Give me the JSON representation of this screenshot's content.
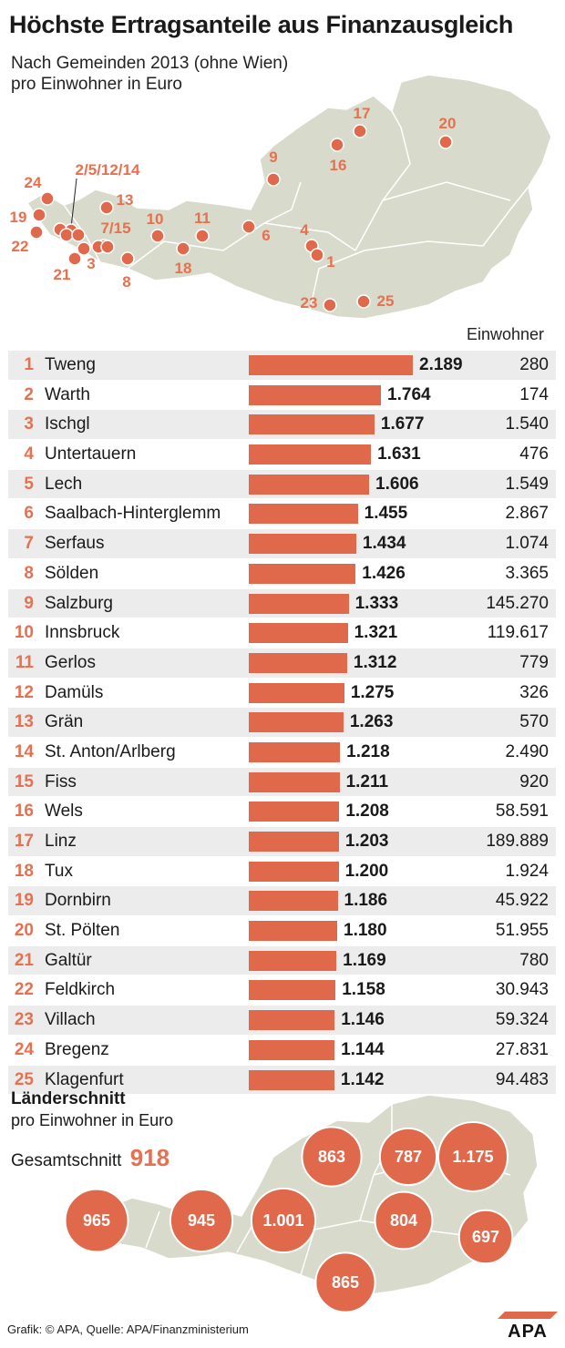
{
  "header": {
    "title": "Höchste Ertragsanteile aus Finanzausgleich",
    "subtitle_line1": "Nach Gemeinden 2013 (ohne Wien)",
    "subtitle_line2": "pro Einwohner in Euro"
  },
  "table_header": {
    "einwohner": "Einwohner"
  },
  "colors": {
    "accent": "#e0694c",
    "map_fill": "#d8dacb",
    "row_alt": "#ececec"
  },
  "chart_data": [
    {
      "type": "bar",
      "orientation": "horizontal",
      "title": "Höchste Ertragsanteile aus Finanzausgleich",
      "subtitle": "Nach Gemeinden 2013 (ohne Wien) pro Einwohner in Euro",
      "rows": [
        {
          "rank": "1",
          "name": "Tweng",
          "value": 2189,
          "value_label": "2.189",
          "einwohner": "280"
        },
        {
          "rank": "2",
          "name": "Warth",
          "value": 1764,
          "value_label": "1.764",
          "einwohner": "174"
        },
        {
          "rank": "3",
          "name": "Ischgl",
          "value": 1677,
          "value_label": "1.677",
          "einwohner": "1.540"
        },
        {
          "rank": "4",
          "name": "Untertauern",
          "value": 1631,
          "value_label": "1.631",
          "einwohner": "476"
        },
        {
          "rank": "5",
          "name": "Lech",
          "value": 1606,
          "value_label": "1.606",
          "einwohner": "1.549"
        },
        {
          "rank": "6",
          "name": "Saalbach-Hinterglemm",
          "value": 1455,
          "value_label": "1.455",
          "einwohner": "2.867"
        },
        {
          "rank": "7",
          "name": "Serfaus",
          "value": 1434,
          "value_label": "1.434",
          "einwohner": "1.074"
        },
        {
          "rank": "8",
          "name": "Sölden",
          "value": 1426,
          "value_label": "1.426",
          "einwohner": "3.365"
        },
        {
          "rank": "9",
          "name": "Salzburg",
          "value": 1333,
          "value_label": "1.333",
          "einwohner": "145.270"
        },
        {
          "rank": "10",
          "name": "Innsbruck",
          "value": 1321,
          "value_label": "1.321",
          "einwohner": "119.617"
        },
        {
          "rank": "11",
          "name": "Gerlos",
          "value": 1312,
          "value_label": "1.312",
          "einwohner": "779"
        },
        {
          "rank": "12",
          "name": "Damüls",
          "value": 1275,
          "value_label": "1.275",
          "einwohner": "326"
        },
        {
          "rank": "13",
          "name": "Grän",
          "value": 1263,
          "value_label": "1.263",
          "einwohner": "570"
        },
        {
          "rank": "14",
          "name": "St. Anton/Arlberg",
          "value": 1218,
          "value_label": "1.218",
          "einwohner": "2.490"
        },
        {
          "rank": "15",
          "name": "Fiss",
          "value": 1211,
          "value_label": "1.211",
          "einwohner": "920"
        },
        {
          "rank": "16",
          "name": "Wels",
          "value": 1208,
          "value_label": "1.208",
          "einwohner": "58.591"
        },
        {
          "rank": "17",
          "name": "Linz",
          "value": 1203,
          "value_label": "1.203",
          "einwohner": "189.889"
        },
        {
          "rank": "18",
          "name": "Tux",
          "value": 1200,
          "value_label": "1.200",
          "einwohner": "1.924"
        },
        {
          "rank": "19",
          "name": "Dornbirn",
          "value": 1186,
          "value_label": "1.186",
          "einwohner": "45.922"
        },
        {
          "rank": "20",
          "name": "St. Pölten",
          "value": 1180,
          "value_label": "1.180",
          "einwohner": "51.955"
        },
        {
          "rank": "21",
          "name": "Galtür",
          "value": 1169,
          "value_label": "1.169",
          "einwohner": "780"
        },
        {
          "rank": "22",
          "name": "Feldkirch",
          "value": 1158,
          "value_label": "1.158",
          "einwohner": "30.943"
        },
        {
          "rank": "23",
          "name": "Villach",
          "value": 1146,
          "value_label": "1.146",
          "einwohner": "59.324"
        },
        {
          "rank": "24",
          "name": "Bregenz",
          "value": 1144,
          "value_label": "1.144",
          "einwohner": "27.831"
        },
        {
          "rank": "25",
          "name": "Klagenfurt",
          "value": 1142,
          "value_label": "1.142",
          "einwohner": "94.483"
        }
      ],
      "map_labels": [
        "24",
        "19",
        "22",
        "2/5/12/14",
        "13",
        "7/15",
        "3",
        "21",
        "8",
        "10",
        "11",
        "18",
        "6",
        "9",
        "4",
        "1",
        "17",
        "16",
        "20",
        "23",
        "25"
      ]
    },
    {
      "type": "bubble-map",
      "title": "Länderschnitt",
      "subtitle": "pro Einwohner in Euro",
      "overall_label": "Gesamtschnitt",
      "overall_value": 918,
      "overall_value_label": "918",
      "values": [
        {
          "label": "965",
          "value": 965
        },
        {
          "label": "945",
          "value": 945
        },
        {
          "label": "1.001",
          "value": 1001
        },
        {
          "label": "863",
          "value": 863
        },
        {
          "label": "787",
          "value": 787
        },
        {
          "label": "1.175",
          "value": 1175
        },
        {
          "label": "804",
          "value": 804
        },
        {
          "label": "697",
          "value": 697
        },
        {
          "label": "865",
          "value": 865
        }
      ]
    }
  ],
  "footer": {
    "source": "Grafik: © APA, Quelle: APA/Finanzministerium",
    "logo": "APA"
  }
}
